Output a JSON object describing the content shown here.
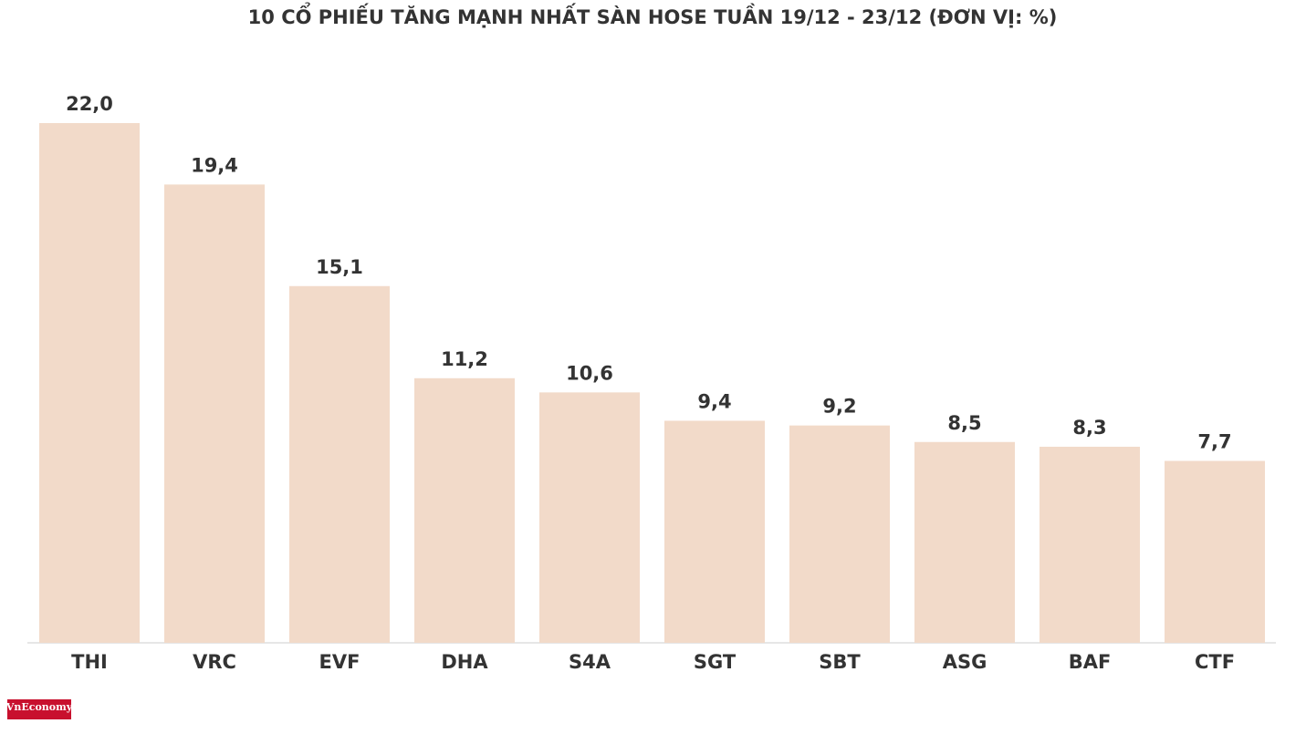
{
  "chart_data": {
    "type": "bar",
    "title": "10 CỔ PHIẾU TĂNG MẠNH NHẤT SÀN HOSE TUẦN 19/12 - 23/12 (ĐƠN VỊ: %)",
    "categories": [
      "THI",
      "VRC",
      "EVF",
      "DHA",
      "S4A",
      "SGT",
      "SBT",
      "ASG",
      "BAF",
      "CTF"
    ],
    "values": [
      22.0,
      19.4,
      15.1,
      11.2,
      10.6,
      9.4,
      9.2,
      8.5,
      8.3,
      7.7
    ],
    "value_labels": [
      "22,0",
      "19,4",
      "15,1",
      "11,2",
      "10,6",
      "9,4",
      "9,2",
      "8,5",
      "8,3",
      "7,7"
    ],
    "color": "#f2dac9"
  },
  "logo": "VnEconomy"
}
